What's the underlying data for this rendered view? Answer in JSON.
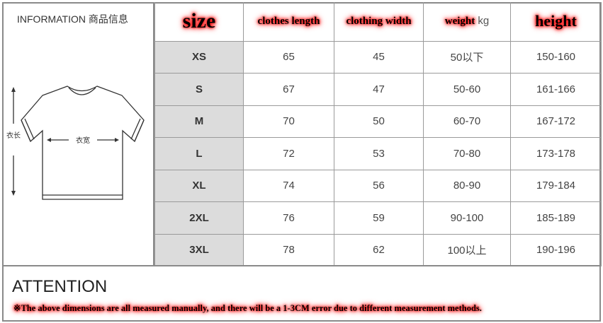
{
  "info_label": "INFORMATION 商品信息",
  "diagram": {
    "length_label": "衣长",
    "width_label": "衣宽"
  },
  "headers": [
    "size",
    "clothes length",
    "clothing width",
    "weight",
    "height"
  ],
  "weight_unit": "kg",
  "rows": [
    [
      "XS",
      "65",
      "45",
      "50以下",
      "150-160"
    ],
    [
      "S",
      "67",
      "47",
      "50-60",
      "161-166"
    ],
    [
      "M",
      "70",
      "50",
      "60-70",
      "167-172"
    ],
    [
      "L",
      "72",
      "53",
      "70-80",
      "173-178"
    ],
    [
      "XL",
      "74",
      "56",
      "80-90",
      "179-184"
    ],
    [
      "2XL",
      "76",
      "59",
      "90-100",
      "185-189"
    ],
    [
      "3XL",
      "78",
      "62",
      "100以上",
      "190-196"
    ]
  ],
  "attention": {
    "title": "ATTENTION",
    "note": "※The above dimensions are all measured manually, and there will be a 1-3CM error due to different measurement methods."
  },
  "colors": {
    "size_column_bg": "#dcdcdc",
    "highlight_glow": "#ff0000"
  }
}
